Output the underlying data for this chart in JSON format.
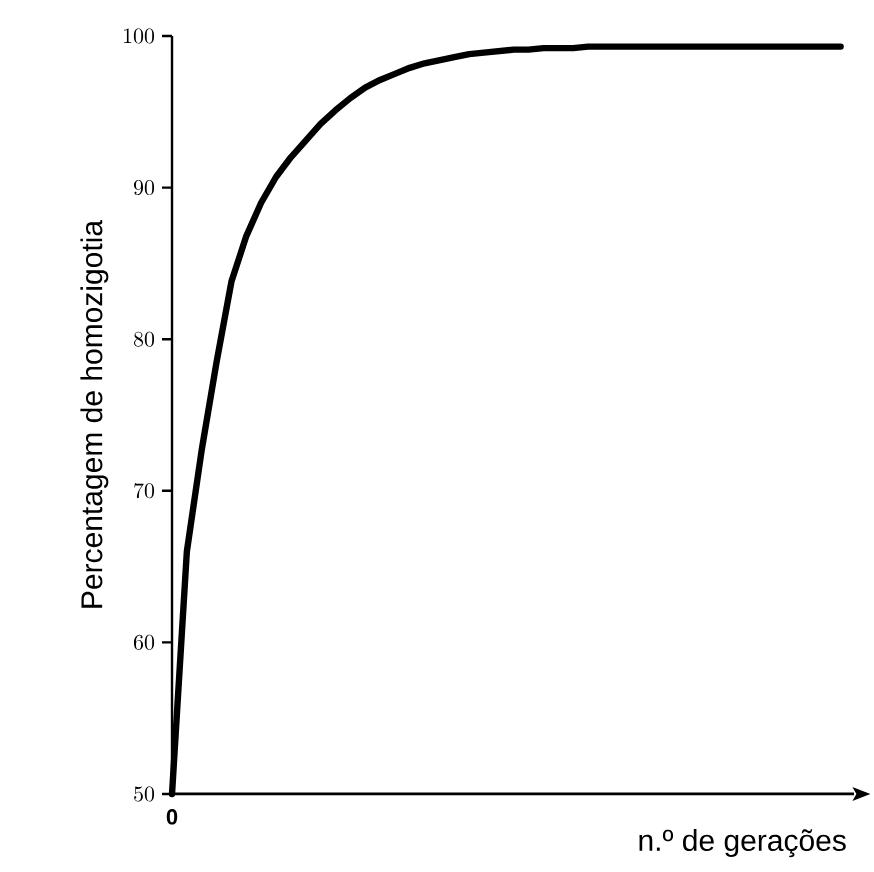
{
  "chart_data": {
    "type": "line",
    "xlabel": "n.º de gerações",
    "ylabel": "Percentagem de homozigotia",
    "annotations": [
      "0"
    ],
    "ylim": [
      50,
      100
    ],
    "yticks": [
      50,
      60,
      70,
      80,
      90,
      100
    ],
    "grid": false,
    "marker": "none",
    "line_style": "solid",
    "categories": [
      null,
      null,
      null,
      null,
      null,
      null,
      null,
      null,
      null,
      null,
      null,
      null,
      null,
      null,
      null,
      null,
      null,
      null,
      null,
      null,
      null,
      null,
      null,
      null,
      null,
      null,
      null,
      null,
      null,
      null,
      null,
      null,
      null,
      null,
      null,
      null,
      null,
      null,
      null,
      null,
      null,
      null,
      null,
      null,
      null,
      null
    ],
    "series": [
      {
        "color": "#000000",
        "values": [
          50,
          66,
          72.7,
          78.5,
          83.8,
          86.8,
          89,
          90.7,
          92,
          93.1,
          94.2,
          95.1,
          95.9,
          96.6,
          97.1,
          97.5,
          97.9,
          98.2,
          98.4,
          98.6,
          98.8,
          98.9,
          99,
          99.1,
          99.1,
          99.2,
          99.2,
          99.2,
          99.3,
          99.3,
          99.3,
          99.3,
          99.3,
          99.3,
          99.3,
          99.3,
          99.3,
          99.3,
          99.3,
          99.3,
          99.3,
          99.3,
          99.3,
          99.3,
          99.3,
          99.3
        ]
      }
    ]
  }
}
